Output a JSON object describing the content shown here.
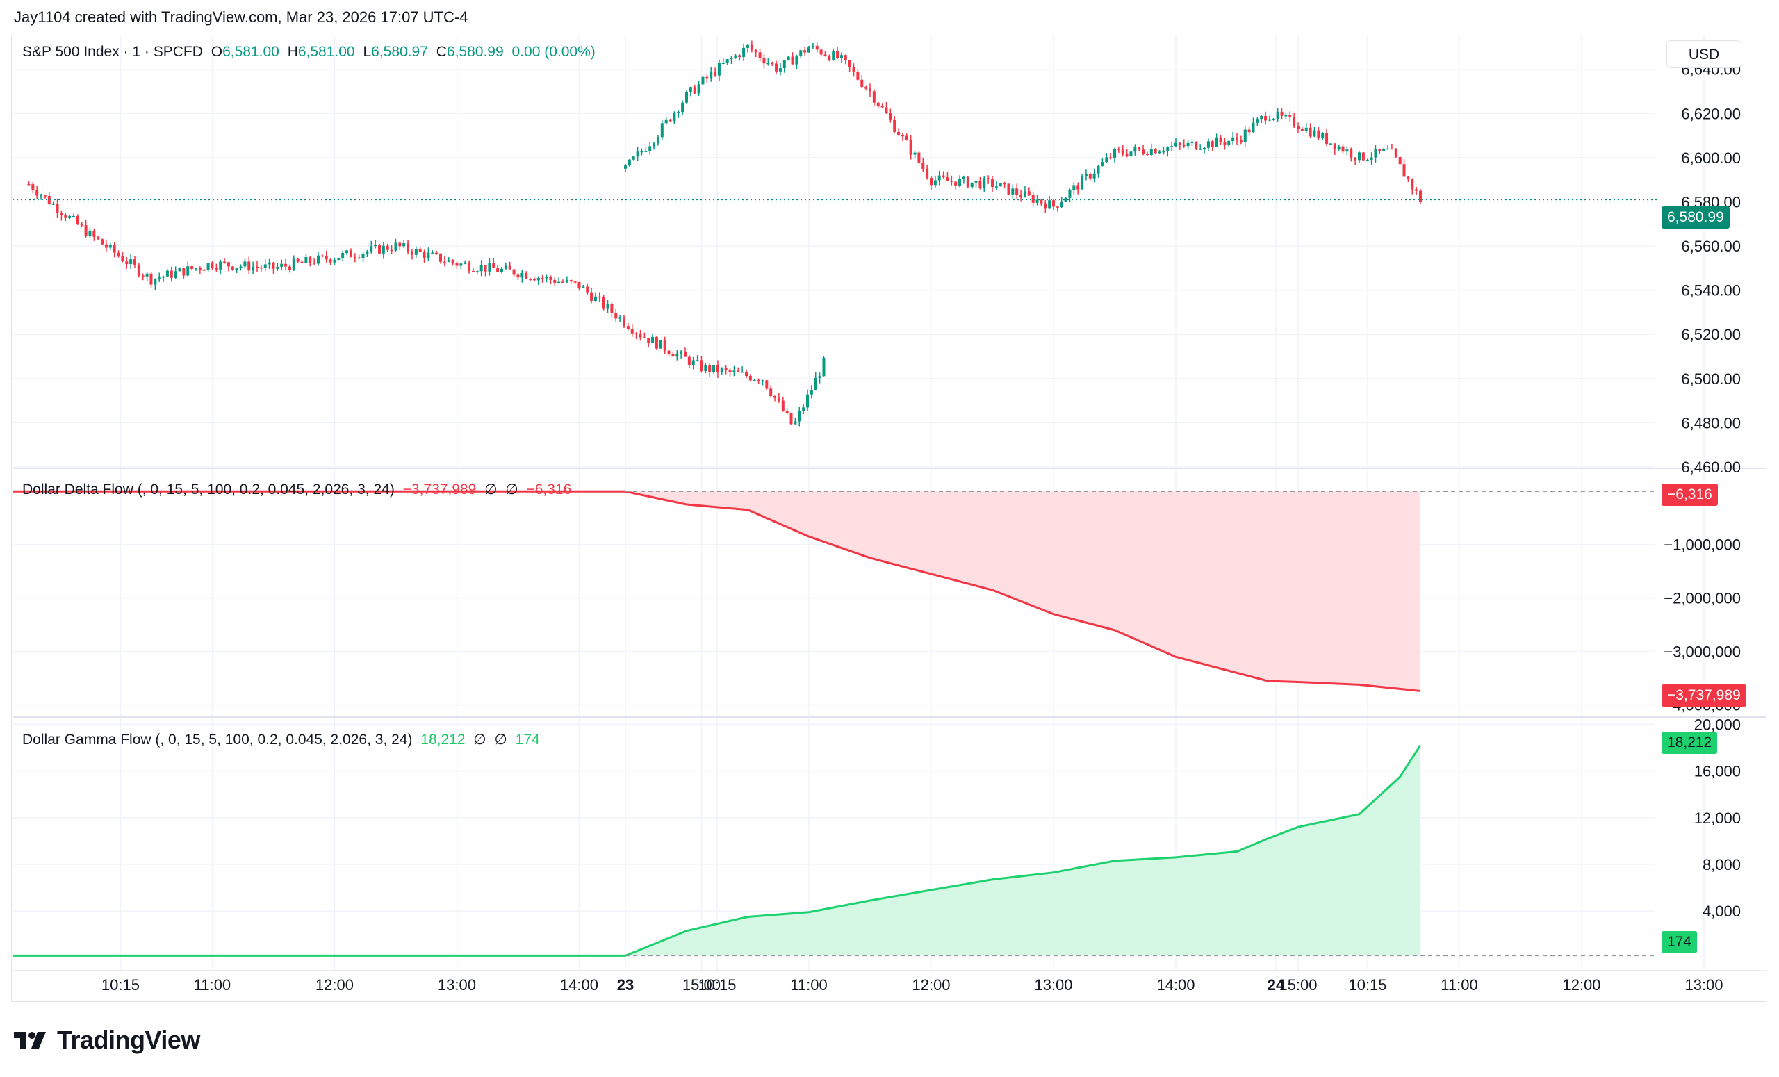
{
  "header": {
    "text": "Jay1104 created with TradingView.com, Mar 23, 2026 17:07 UTC-4"
  },
  "main_legend": {
    "symbol": "S&P 500 Index · 1 · SPCFD",
    "o_label": "O",
    "o_value": "6,581.00",
    "h_label": "H",
    "h_value": "6,581.00",
    "l_label": "L",
    "l_value": "6,580.97",
    "c_label": "C",
    "c_value": "6,580.99",
    "change": "0.00 (0.00%)"
  },
  "currency": "USD",
  "delta_legend": {
    "title": "Dollar Delta Flow (, 0, 15, 5, 100, 0.2, 0.045, 2,026, 3, 24)",
    "v1": "−3,737,989",
    "na1": "∅",
    "na2": "∅",
    "v2": "−6,316"
  },
  "gamma_legend": {
    "title": "Dollar Gamma Flow (, 0, 15, 5, 100, 0.2, 0.045, 2,026, 3, 24)",
    "v1": "18,212",
    "na1": "∅",
    "na2": "∅",
    "v2": "174"
  },
  "price_tags": {
    "last_price": "6,580.99",
    "delta_first": "−6,316",
    "delta_last": "−3,737,989",
    "gamma_last": "18,212",
    "gamma_first": "174"
  },
  "brand": {
    "name": "TradingView"
  },
  "colors": {
    "up": "#089981",
    "down": "#f23645",
    "delta_line": "#f23645",
    "delta_fill": "#ffdfe1",
    "gamma_line": "#1ed16f",
    "gamma_fill": "#d5f8e4",
    "last_price_tag": "#078a74"
  },
  "chart_data": [
    {
      "type": "candlestick",
      "title": "S&P 500 Index · 1 · SPCFD",
      "ylim": [
        6460,
        6655
      ],
      "y_ticks": [
        "6,460.00",
        "6,480.00",
        "6,500.00",
        "6,520.00",
        "6,540.00",
        "6,560.00",
        "6,580.00",
        "6,600.00",
        "6,620.00",
        "6,640.00"
      ],
      "y_tick_values": [
        6460,
        6480,
        6500,
        6520,
        6540,
        6560,
        6580,
        6600,
        6620,
        6640
      ],
      "last_price": 6580.99,
      "x_ticks": [
        "10:15",
        "11:00",
        "12:00",
        "13:00",
        "14:00",
        "15:00",
        "23",
        "10:15",
        "11:00",
        "12:00",
        "13:00",
        "14:00",
        "15:00",
        "24",
        "10:15",
        "11:00",
        "12:00",
        "13:00"
      ],
      "price_path": {
        "session_1": {
          "x": [
            "09:30",
            "10:00",
            "10:30",
            "11:00",
            "11:30",
            "12:00",
            "12:30",
            "13:00",
            "13:30",
            "14:00",
            "14:30",
            "15:00",
            "15:30",
            "15:45",
            "16:00"
          ],
          "y": [
            6588,
            6565,
            6545,
            6552,
            6550,
            6555,
            6560,
            6552,
            6548,
            6542,
            6520,
            6505,
            6500,
            6478,
            6507
          ]
        },
        "session_2": {
          "x": [
            "09:30",
            "09:45",
            "10:00",
            "10:15",
            "10:30",
            "10:45",
            "11:00",
            "11:15",
            "11:30",
            "11:45",
            "12:00",
            "12:30",
            "13:00",
            "13:30",
            "14:00",
            "14:30",
            "14:45",
            "15:00",
            "15:30",
            "15:45",
            "16:00"
          ],
          "y": [
            6595,
            6610,
            6628,
            6640,
            6650,
            6640,
            6650,
            6645,
            6630,
            6610,
            6590,
            6588,
            6578,
            6602,
            6605,
            6608,
            6620,
            6615,
            6600,
            6603,
            6581
          ]
        }
      }
    },
    {
      "type": "area",
      "title": "Dollar Delta Flow (, 0, 15, 5, 100, 0.2, 0.045, 2,026, 3, 24)",
      "ylim": [
        -4200000,
        400000
      ],
      "y_ticks": [
        "−1,000,000",
        "−2,000,000",
        "−3,000,000",
        "−4,000,000"
      ],
      "y_tick_values": [
        -1000000,
        -2000000,
        -3000000,
        -4000000
      ],
      "x": [
        "D1 09:30",
        "D2 09:30",
        "D2 10:00",
        "D2 10:30",
        "D2 11:00",
        "D2 11:30",
        "D2 12:00",
        "D2 12:30",
        "D2 13:00",
        "D2 13:30",
        "D2 14:00",
        "D2 14:30",
        "D2 14:45",
        "D2 15:00",
        "D2 15:30",
        "D2 16:00"
      ],
      "values": [
        -6316,
        -6316,
        -250000,
        -350000,
        -850000,
        -1250000,
        -1550000,
        -1850000,
        -2300000,
        -2600000,
        -3100000,
        -3400000,
        -3550000,
        -3570000,
        -3620000,
        -3737989
      ]
    },
    {
      "type": "area",
      "title": "Dollar Gamma Flow (, 0, 15, 5, 100, 0.2, 0.045, 2,026, 3, 24)",
      "ylim": [
        -400,
        20500
      ],
      "y_ticks": [
        "4,000",
        "8,000",
        "12,000",
        "16,000",
        "20,000"
      ],
      "y_tick_values": [
        4000,
        8000,
        12000,
        16000,
        20000
      ],
      "x": [
        "D1 09:30",
        "D2 09:30",
        "D2 10:00",
        "D2 10:30",
        "D2 11:00",
        "D2 11:30",
        "D2 12:00",
        "D2 12:30",
        "D2 13:00",
        "D2 13:30",
        "D2 14:00",
        "D2 14:30",
        "D2 14:45",
        "D2 15:00",
        "D2 15:30",
        "D2 15:50",
        "D2 16:00"
      ],
      "values": [
        174,
        174,
        2300,
        3500,
        3900,
        4900,
        5800,
        6700,
        7300,
        8300,
        8600,
        9100,
        10200,
        11200,
        12300,
        15500,
        18212
      ]
    }
  ]
}
